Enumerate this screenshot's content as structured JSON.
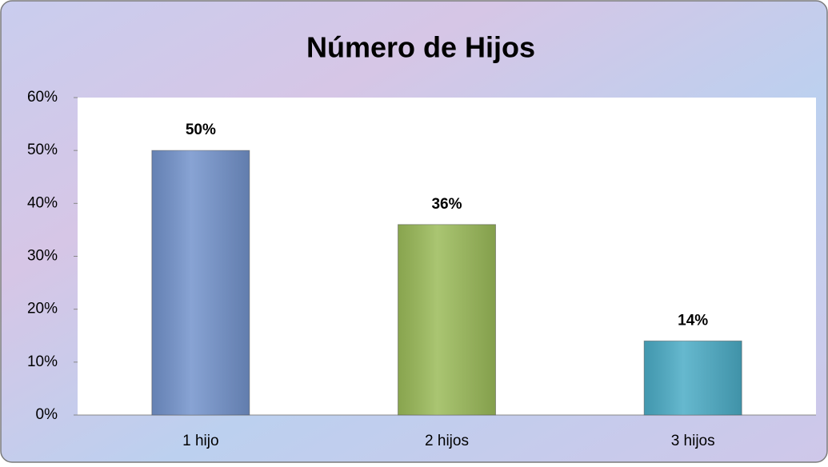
{
  "chart_data": {
    "type": "bar",
    "title": "Número de Hijos",
    "categories": [
      "1 hijo",
      "2 hijos",
      "3 hijos"
    ],
    "values": [
      50,
      36,
      14
    ],
    "value_labels": [
      "50%",
      "36%",
      "14%"
    ],
    "colors": [
      "#7393cc",
      "#9bbb59",
      "#4bacc6"
    ],
    "ylim": [
      0,
      60
    ],
    "yticks": [
      {
        "value": 0,
        "label": "0%"
      },
      {
        "value": 10,
        "label": "10%"
      },
      {
        "value": 20,
        "label": "20%"
      },
      {
        "value": 30,
        "label": "30%"
      },
      {
        "value": 40,
        "label": "40%"
      },
      {
        "value": 50,
        "label": "50%"
      },
      {
        "value": 60,
        "label": "60%"
      }
    ],
    "grid": false
  }
}
